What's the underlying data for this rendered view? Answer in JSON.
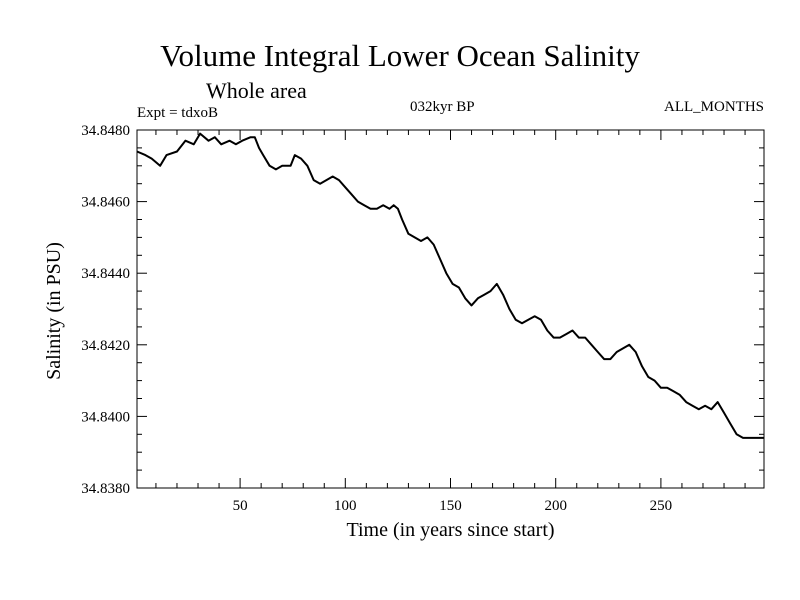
{
  "header": {
    "title": "Volume Integral Lower Ocean Salinity",
    "subtitle": "Whole area",
    "experiment": "Expt = tdxoB",
    "period": "032kyr BP",
    "months": "ALL_MONTHS"
  },
  "chart_data": {
    "type": "line",
    "title": "Volume Integral Lower Ocean Salinity",
    "subtitle": "Whole area",
    "xlabel": "Time (in years since start)",
    "ylabel": "Salinity (in PSU)",
    "xlim": [
      1,
      299
    ],
    "ylim": [
      34.838,
      34.848
    ],
    "x_ticks": [
      50,
      100,
      150,
      200,
      250
    ],
    "y_ticks": [
      34.838,
      34.84,
      34.842,
      34.844,
      34.846,
      34.848
    ],
    "y_tick_labels": [
      "34.8380",
      "34.8400",
      "34.8420",
      "34.8440",
      "34.8460",
      "34.8480"
    ],
    "grid": false,
    "legend": "none",
    "series": [
      {
        "color": "#000000",
        "x": [
          1,
          5,
          8,
          12,
          15,
          20,
          24,
          28,
          31,
          35,
          38,
          41,
          45,
          48,
          51,
          55,
          57,
          59,
          61,
          64,
          67,
          70,
          74,
          76,
          79,
          82,
          85,
          88,
          91,
          94,
          97,
          100,
          103,
          106,
          109,
          112,
          115,
          118,
          121,
          123,
          125,
          127,
          130,
          133,
          136,
          139,
          142,
          145,
          148,
          151,
          154,
          157,
          160,
          163,
          166,
          169,
          172,
          175,
          178,
          181,
          184,
          187,
          190,
          193,
          196,
          199,
          202,
          205,
          208,
          211,
          214,
          217,
          220,
          223,
          226,
          229,
          232,
          235,
          238,
          241,
          244,
          247,
          250,
          253,
          256,
          259,
          262,
          265,
          268,
          271,
          274,
          277,
          280,
          283,
          286,
          289,
          292,
          295,
          299
        ],
        "values": [
          34.8474,
          34.8473,
          34.8472,
          34.847,
          34.8473,
          34.8474,
          34.8477,
          34.8476,
          34.8479,
          34.8477,
          34.8478,
          34.8476,
          34.8477,
          34.8476,
          34.8477,
          34.8478,
          34.8478,
          34.8475,
          34.8473,
          34.847,
          34.8469,
          34.847,
          34.847,
          34.8473,
          34.8472,
          34.847,
          34.8466,
          34.8465,
          34.8466,
          34.8467,
          34.8466,
          34.8464,
          34.8462,
          34.846,
          34.8459,
          34.8458,
          34.8458,
          34.8459,
          34.8458,
          34.8459,
          34.8458,
          34.8455,
          34.8451,
          34.845,
          34.8449,
          34.845,
          34.8448,
          34.8444,
          34.844,
          34.8437,
          34.8436,
          34.8433,
          34.8431,
          34.8433,
          34.8434,
          34.8435,
          34.8437,
          34.8434,
          34.843,
          34.8427,
          34.8426,
          34.8427,
          34.8428,
          34.8427,
          34.8424,
          34.8422,
          34.8422,
          34.8423,
          34.8424,
          34.8422,
          34.8422,
          34.842,
          34.8418,
          34.8416,
          34.8416,
          34.8418,
          34.8419,
          34.842,
          34.8418,
          34.8414,
          34.8411,
          34.841,
          34.8408,
          34.8408,
          34.8407,
          34.8406,
          34.8404,
          34.8403,
          34.8402,
          34.8403,
          34.8402,
          34.8404,
          34.8401,
          34.8398,
          34.8395,
          34.8394,
          34.8394,
          34.8394,
          34.8394
        ]
      }
    ]
  }
}
